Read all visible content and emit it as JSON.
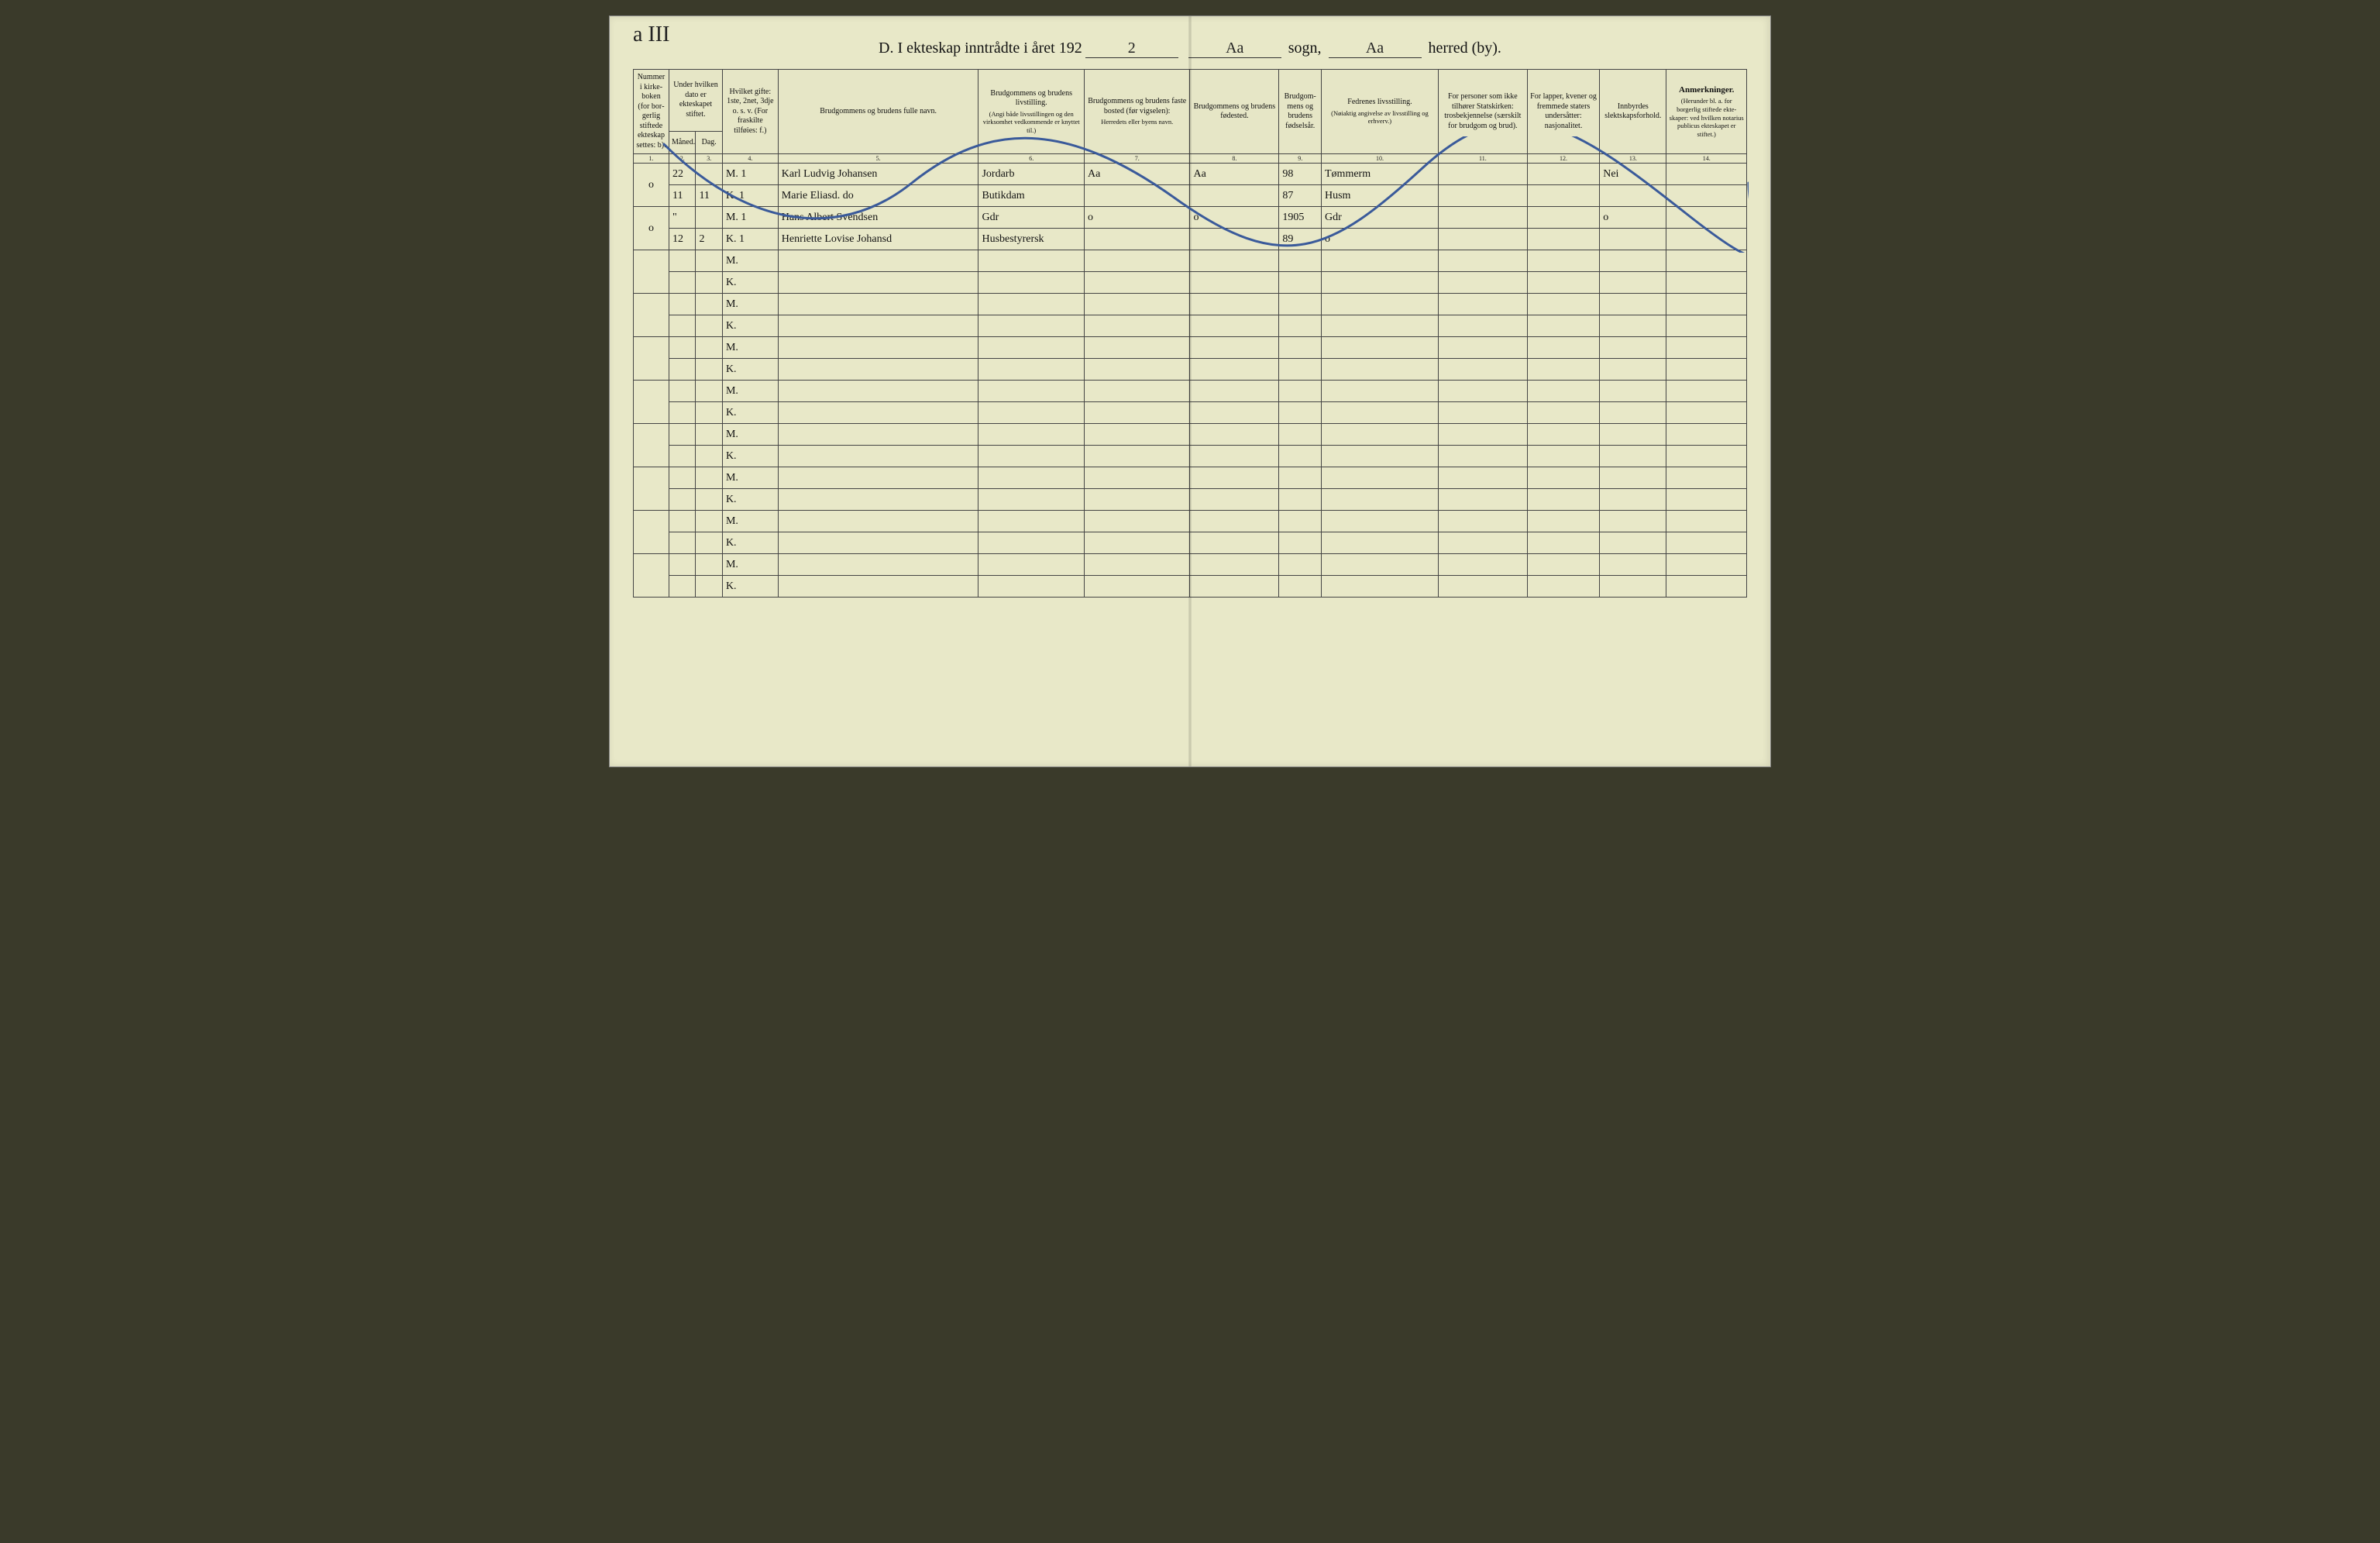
{
  "corner_note": "a III",
  "title": {
    "prefix": "D.   I ekteskap inntrådte i året 192",
    "year_suffix": "2",
    "sogn_label": "sogn,",
    "sogn_value": "Aa",
    "herred_label": "herred (by).",
    "herred_value": "Aa"
  },
  "headers": {
    "c1": "Nummer i kirke­boken (for bor­gerlig stiftede ekte­skap settes: b).",
    "c2": "Under hvil­ken dato er ekteskapet stiftet.",
    "c2a": "Måned.",
    "c2b": "Dag.",
    "c3": "Hvilket gifte: 1ste, 2net, 3dje o. s. v. (For fraskilte tilføies: f.)",
    "c4": "Brudgommens og brudens fulle navn.",
    "c5": "Brudgommens og brudens livstilling.",
    "c5_sub": "(Angi både livsstillingen og den virksomhet vedkommende er knyttet til.)",
    "c6": "Brudgommens og brudens faste bosted (før vigselen):",
    "c6_sub": "Herredets eller byens navn.",
    "c7": "Brudgommens og brudens fødested.",
    "c8": "Brudgom­mens og brudens fødsels­år.",
    "c9": "Fedrenes livsstilling.",
    "c9_sub": "(Nøiaktig angivelse av livsstilling og erhverv.)",
    "c10": "For personer som ikke tilhører Statskirken: trosbekjennelse (særskilt for brudgom og brud).",
    "c11": "For lapper, kvener og fremmede staters undersåtter: nasjonalitet.",
    "c12": "Innbyrdes slektskapsforhold.",
    "c13": "Anmerkninger.",
    "c13_sub": "(Herunder bl. a. for borgerlig stiftede ekte­skaper: ved hvilken notarius publicus ekteskapet er stiftet.)"
  },
  "colnums": [
    "1.",
    "2.",
    "3.",
    "4.",
    "5.",
    "6.",
    "7.",
    "8.",
    "9.",
    "10.",
    "11.",
    "12.",
    "13.",
    "14."
  ],
  "mk": {
    "m": "M.",
    "k": "K."
  },
  "entries": [
    {
      "nummer": "o",
      "m": {
        "maned": "22",
        "dag": "",
        "gifte": "1",
        "navn": "Karl Ludvig Johansen",
        "livs": "Jordarb",
        "bosted": "Aa",
        "fodested": "Aa",
        "ar": "98",
        "fedre": "Tømmerm",
        "slekt": "Nei"
      },
      "k": {
        "maned": "11",
        "dag": "11",
        "gifte": "1",
        "navn": "Marie Eliasd. do",
        "livs": "Butikdam",
        "bosted": "",
        "fodested": "",
        "ar": "87",
        "fedre": "Husm",
        "slekt": ""
      }
    },
    {
      "nummer": "o",
      "m": {
        "maned": "\"",
        "dag": "",
        "gifte": "1",
        "navn": "Hans Albert Svendsen",
        "livs": "Gdr",
        "bosted": "o",
        "fodested": "o",
        "ar": "1905",
        "fedre": "Gdr",
        "slekt": "o"
      },
      "k": {
        "maned": "12",
        "dag": "2",
        "gifte": "1",
        "navn": "Henriette Lovise Johansd",
        "livs": "Husbestyrersk",
        "bosted": "",
        "fodested": "",
        "ar": "89",
        "fedre": "o",
        "slekt": ""
      }
    }
  ],
  "styling": {
    "page_bg": "#e8e8c8",
    "ink": "#111111",
    "rule_color": "#444444",
    "squiggle_color": "#3a5a9a",
    "header_fontsize_pt": 9,
    "hand_fontsize_pt": 16,
    "blank_pairs": 8
  }
}
